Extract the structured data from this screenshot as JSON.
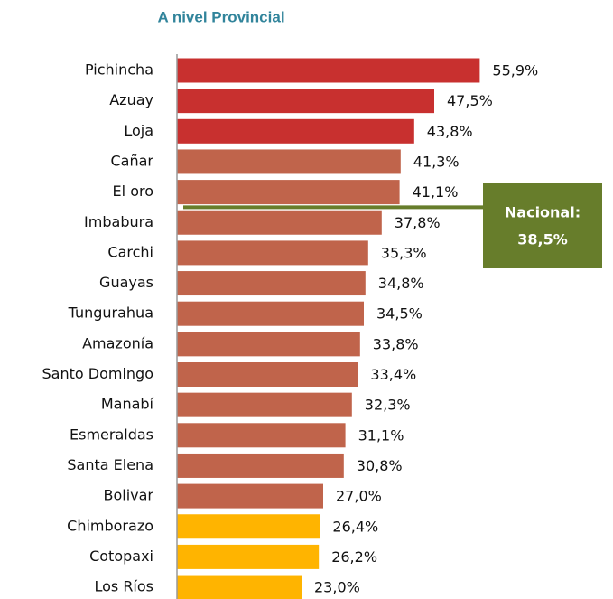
{
  "chart_data": {
    "type": "barh",
    "title": "A nivel Provincial",
    "categories": [
      "Pichincha",
      "Azuay",
      "Loja",
      "Cañar",
      "El oro",
      "Imbabura",
      "Carchi",
      "Guayas",
      "Tungurahua",
      "Amazonía",
      "Santo Domingo",
      "Manabí",
      "Esmeraldas",
      "Santa Elena",
      "Bolivar",
      "Chimborazo",
      "Cotopaxi",
      "Los Ríos"
    ],
    "values": [
      55.9,
      47.5,
      43.8,
      41.3,
      41.1,
      37.8,
      35.3,
      34.8,
      34.5,
      33.8,
      33.4,
      32.3,
      31.1,
      30.8,
      27.0,
      26.4,
      26.2,
      23.0
    ],
    "value_labels": [
      "55,9%",
      "47,5%",
      "43,8%",
      "41,3%",
      "41,1%",
      "37,8%",
      "35,3%",
      "34,8%",
      "34,5%",
      "33,8%",
      "33,4%",
      "32,3%",
      "31,1%",
      "30,8%",
      "27,0%",
      "26,4%",
      "26,2%",
      "23,0%"
    ],
    "colors": [
      "#c8302f",
      "#c8302f",
      "#c8302f",
      "#c0644b",
      "#c0644b",
      "#c0644b",
      "#c0644b",
      "#c0644b",
      "#c0644b",
      "#c0644b",
      "#c0644b",
      "#c0644b",
      "#c0644b",
      "#c0644b",
      "#c0644b",
      "#ffb400",
      "#ffb400",
      "#ffb400"
    ],
    "xlim": [
      0,
      80
    ],
    "reference": {
      "label": "Nacional:",
      "value": 38.5,
      "value_label": "38,5%",
      "color": "#677d2b"
    }
  }
}
